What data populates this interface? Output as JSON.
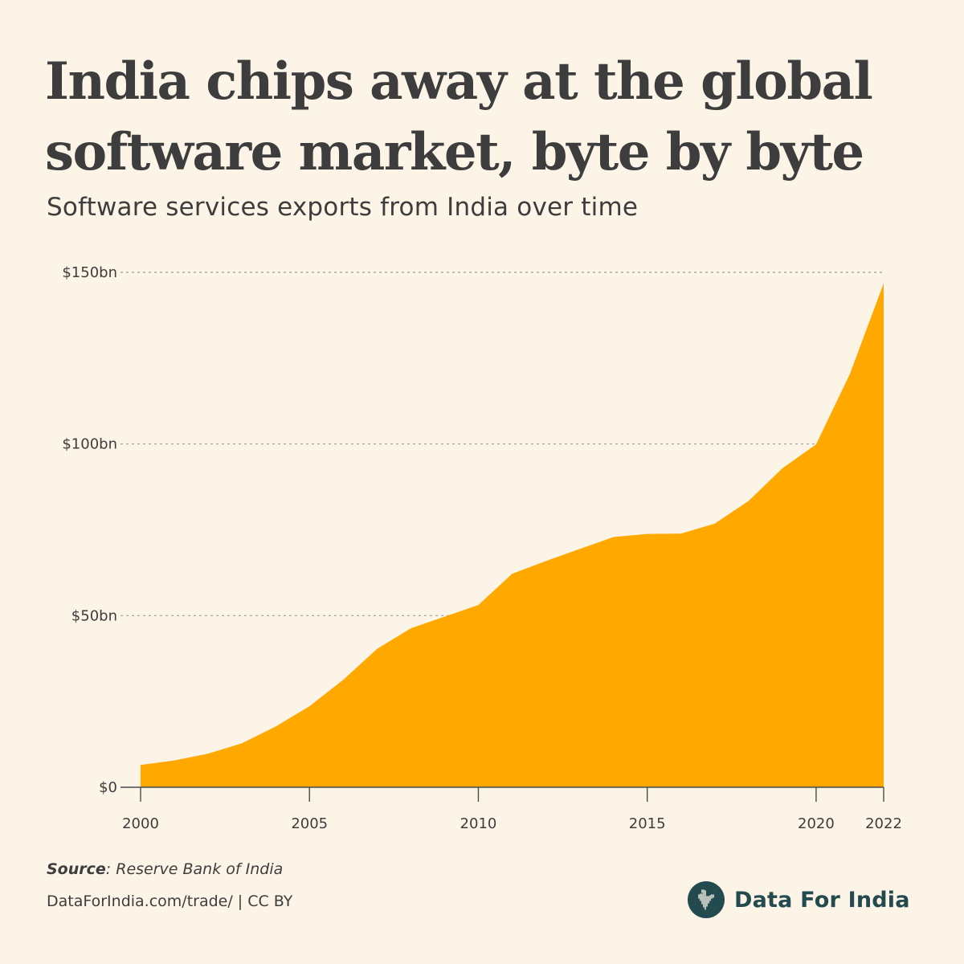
{
  "title": "India chips away at the global software market, byte by byte",
  "subtitle": "Software services exports from India over time",
  "source_label": "Source",
  "source_text": ": Reserve Bank of India",
  "credit": "DataForIndia.com/trade/  |  CC BY",
  "logo_text": "Data For India",
  "logo_icon": "india-map-icon",
  "colors": {
    "background": "#fcf5e7",
    "area": "#ffa800",
    "text": "#3d3d3d",
    "grid": "#9a9a9a",
    "brand": "#234a4f"
  },
  "chart_data": {
    "type": "area",
    "x": [
      2000,
      2001,
      2002,
      2003,
      2004,
      2005,
      2006,
      2007,
      2008,
      2009,
      2010,
      2011,
      2012,
      2013,
      2014,
      2015,
      2016,
      2017,
      2018,
      2019,
      2020,
      2021,
      2022
    ],
    "values": [
      6.5,
      7.8,
      9.8,
      12.8,
      17.7,
      23.6,
      31.3,
      40.3,
      46.3,
      49.7,
      53.1,
      62.2,
      65.9,
      69.4,
      72.9,
      73.8,
      73.9,
      76.8,
      83.4,
      92.9,
      99.9,
      120.4,
      146.8
    ],
    "ylim": [
      0,
      150
    ],
    "xlim": [
      2000,
      2022
    ],
    "y_ticks": [
      0,
      50,
      100,
      150
    ],
    "y_tick_labels": [
      "$0",
      "$50bn",
      "$100bn",
      "$150bn"
    ],
    "x_ticks": [
      2000,
      2005,
      2010,
      2015,
      2020,
      2022
    ],
    "x_tick_labels": [
      "2000",
      "2005",
      "2010",
      "2015",
      "2020",
      "2022"
    ],
    "grid": "dotted horizontal",
    "xlabel": "",
    "ylabel": ""
  }
}
